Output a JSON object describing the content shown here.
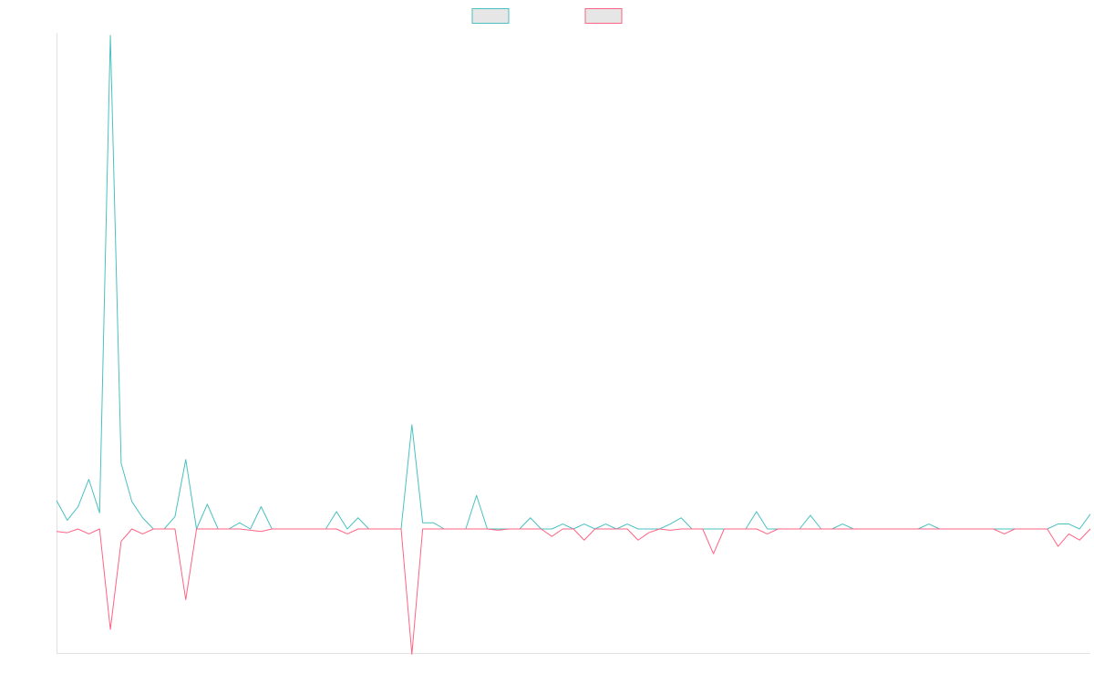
{
  "chart_data": {
    "type": "line",
    "title": "",
    "xlabel": "",
    "ylabel": "",
    "grid": false,
    "legend": "top-center",
    "ylim": [
      -100,
      400
    ],
    "x": [
      0,
      1,
      2,
      3,
      4,
      5,
      6,
      7,
      8,
      9,
      10,
      11,
      12,
      13,
      14,
      15,
      16,
      17,
      18,
      19,
      20,
      21,
      22,
      23,
      24,
      25,
      26,
      27,
      28,
      29,
      30,
      31,
      32,
      33,
      34,
      35,
      36,
      37,
      38,
      39,
      40,
      41,
      42,
      43,
      44,
      45,
      46,
      47,
      48,
      49,
      50,
      51,
      52,
      53,
      54,
      55,
      56,
      57,
      58,
      59,
      60,
      61,
      62,
      63,
      64,
      65,
      66,
      67,
      68,
      69,
      70,
      71,
      72,
      73,
      74,
      75,
      76,
      77,
      78,
      79,
      80,
      81,
      82,
      83,
      84,
      85,
      86,
      87,
      88,
      89,
      90,
      91,
      92,
      93,
      94,
      95,
      96
    ],
    "series": [
      {
        "name": "",
        "color": "#4bc0c0",
        "values": [
          23,
          7,
          18,
          40,
          13,
          398,
          53,
          22,
          9,
          0,
          0,
          10,
          56,
          0,
          20,
          0,
          0,
          5,
          0,
          18,
          0,
          0,
          0,
          0,
          0,
          0,
          14,
          0,
          9,
          0,
          0,
          0,
          0,
          84,
          5,
          5,
          0,
          0,
          0,
          27,
          0,
          0,
          0,
          0,
          9,
          0,
          0,
          4,
          0,
          4,
          0,
          4,
          0,
          4,
          0,
          0,
          0,
          4,
          9,
          0,
          0,
          0,
          0,
          0,
          0,
          14,
          0,
          0,
          0,
          0,
          11,
          0,
          0,
          4,
          0,
          0,
          0,
          0,
          0,
          0,
          0,
          4,
          0,
          0,
          0,
          0,
          0,
          0,
          0,
          0,
          0,
          0,
          0,
          4,
          4,
          0,
          12
        ]
      },
      {
        "name": "",
        "color": "#ff6384",
        "values": [
          -2,
          -3,
          0,
          -4,
          0,
          -81,
          -10,
          0,
          -4,
          0,
          0,
          0,
          -57,
          0,
          0,
          0,
          0,
          0,
          -1,
          -2,
          0,
          0,
          0,
          0,
          0,
          0,
          0,
          -4,
          0,
          0,
          0,
          0,
          0,
          -101,
          0,
          0,
          0,
          0,
          0,
          0,
          0,
          -1,
          0,
          0,
          0,
          0,
          -6,
          0,
          0,
          -9,
          0,
          0,
          0,
          0,
          -9,
          -3,
          0,
          -1,
          0,
          0,
          0,
          -20,
          0,
          0,
          0,
          0,
          -4,
          0,
          0,
          0,
          0,
          0,
          0,
          0,
          0,
          0,
          0,
          0,
          0,
          0,
          0,
          0,
          0,
          0,
          0,
          0,
          0,
          0,
          -4,
          0,
          0,
          0,
          0,
          -14,
          -4,
          -9,
          0
        ]
      }
    ]
  }
}
